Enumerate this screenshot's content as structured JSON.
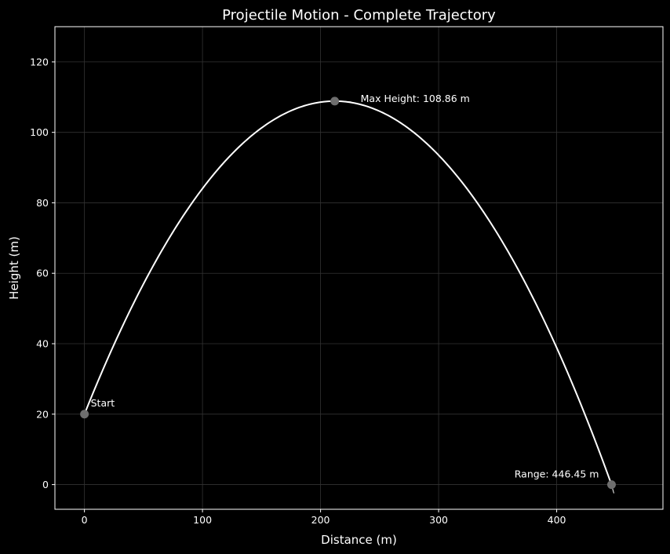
{
  "chart_data": {
    "type": "line",
    "title": "Projectile Motion - Complete Trajectory",
    "xlabel": "Distance (m)",
    "ylabel": "Height (m)",
    "xlim": [
      -25,
      490
    ],
    "ylim": [
      -7,
      130
    ],
    "xticks": [
      0,
      100,
      200,
      300,
      400
    ],
    "yticks": [
      0,
      20,
      40,
      60,
      80,
      100,
      120
    ],
    "grid": true,
    "line_color": "#ffffff",
    "marker_color": "#6e6e6e",
    "background": "#000000",
    "series": [
      {
        "name": "",
        "x": [
          0,
          25,
          50,
          75,
          100,
          125,
          150,
          175,
          200,
          212,
          225,
          250,
          275,
          300,
          325,
          350,
          375,
          400,
          425,
          446.45
        ],
        "y": [
          20,
          38.8,
          55.3,
          69.4,
          81.2,
          90.6,
          97.7,
          102.8,
          106.0,
          108.86,
          106.6,
          103.4,
          97.5,
          88.9,
          77.6,
          63.6,
          46.9,
          27.4,
          5.3,
          0
        ]
      }
    ],
    "trajectory": {
      "x0": 0,
      "y0": 20,
      "x_peak": 212,
      "y_peak": 108.86,
      "x_end": 446.45
    },
    "points": [
      {
        "name": "start",
        "x": 0,
        "y": 20,
        "label": "Start"
      },
      {
        "name": "max-height",
        "x": 212,
        "y": 108.86,
        "label": "Max Height: 108.86 m"
      },
      {
        "name": "range",
        "x": 446.45,
        "y": 0,
        "label": "Range: 446.45 m"
      }
    ]
  }
}
